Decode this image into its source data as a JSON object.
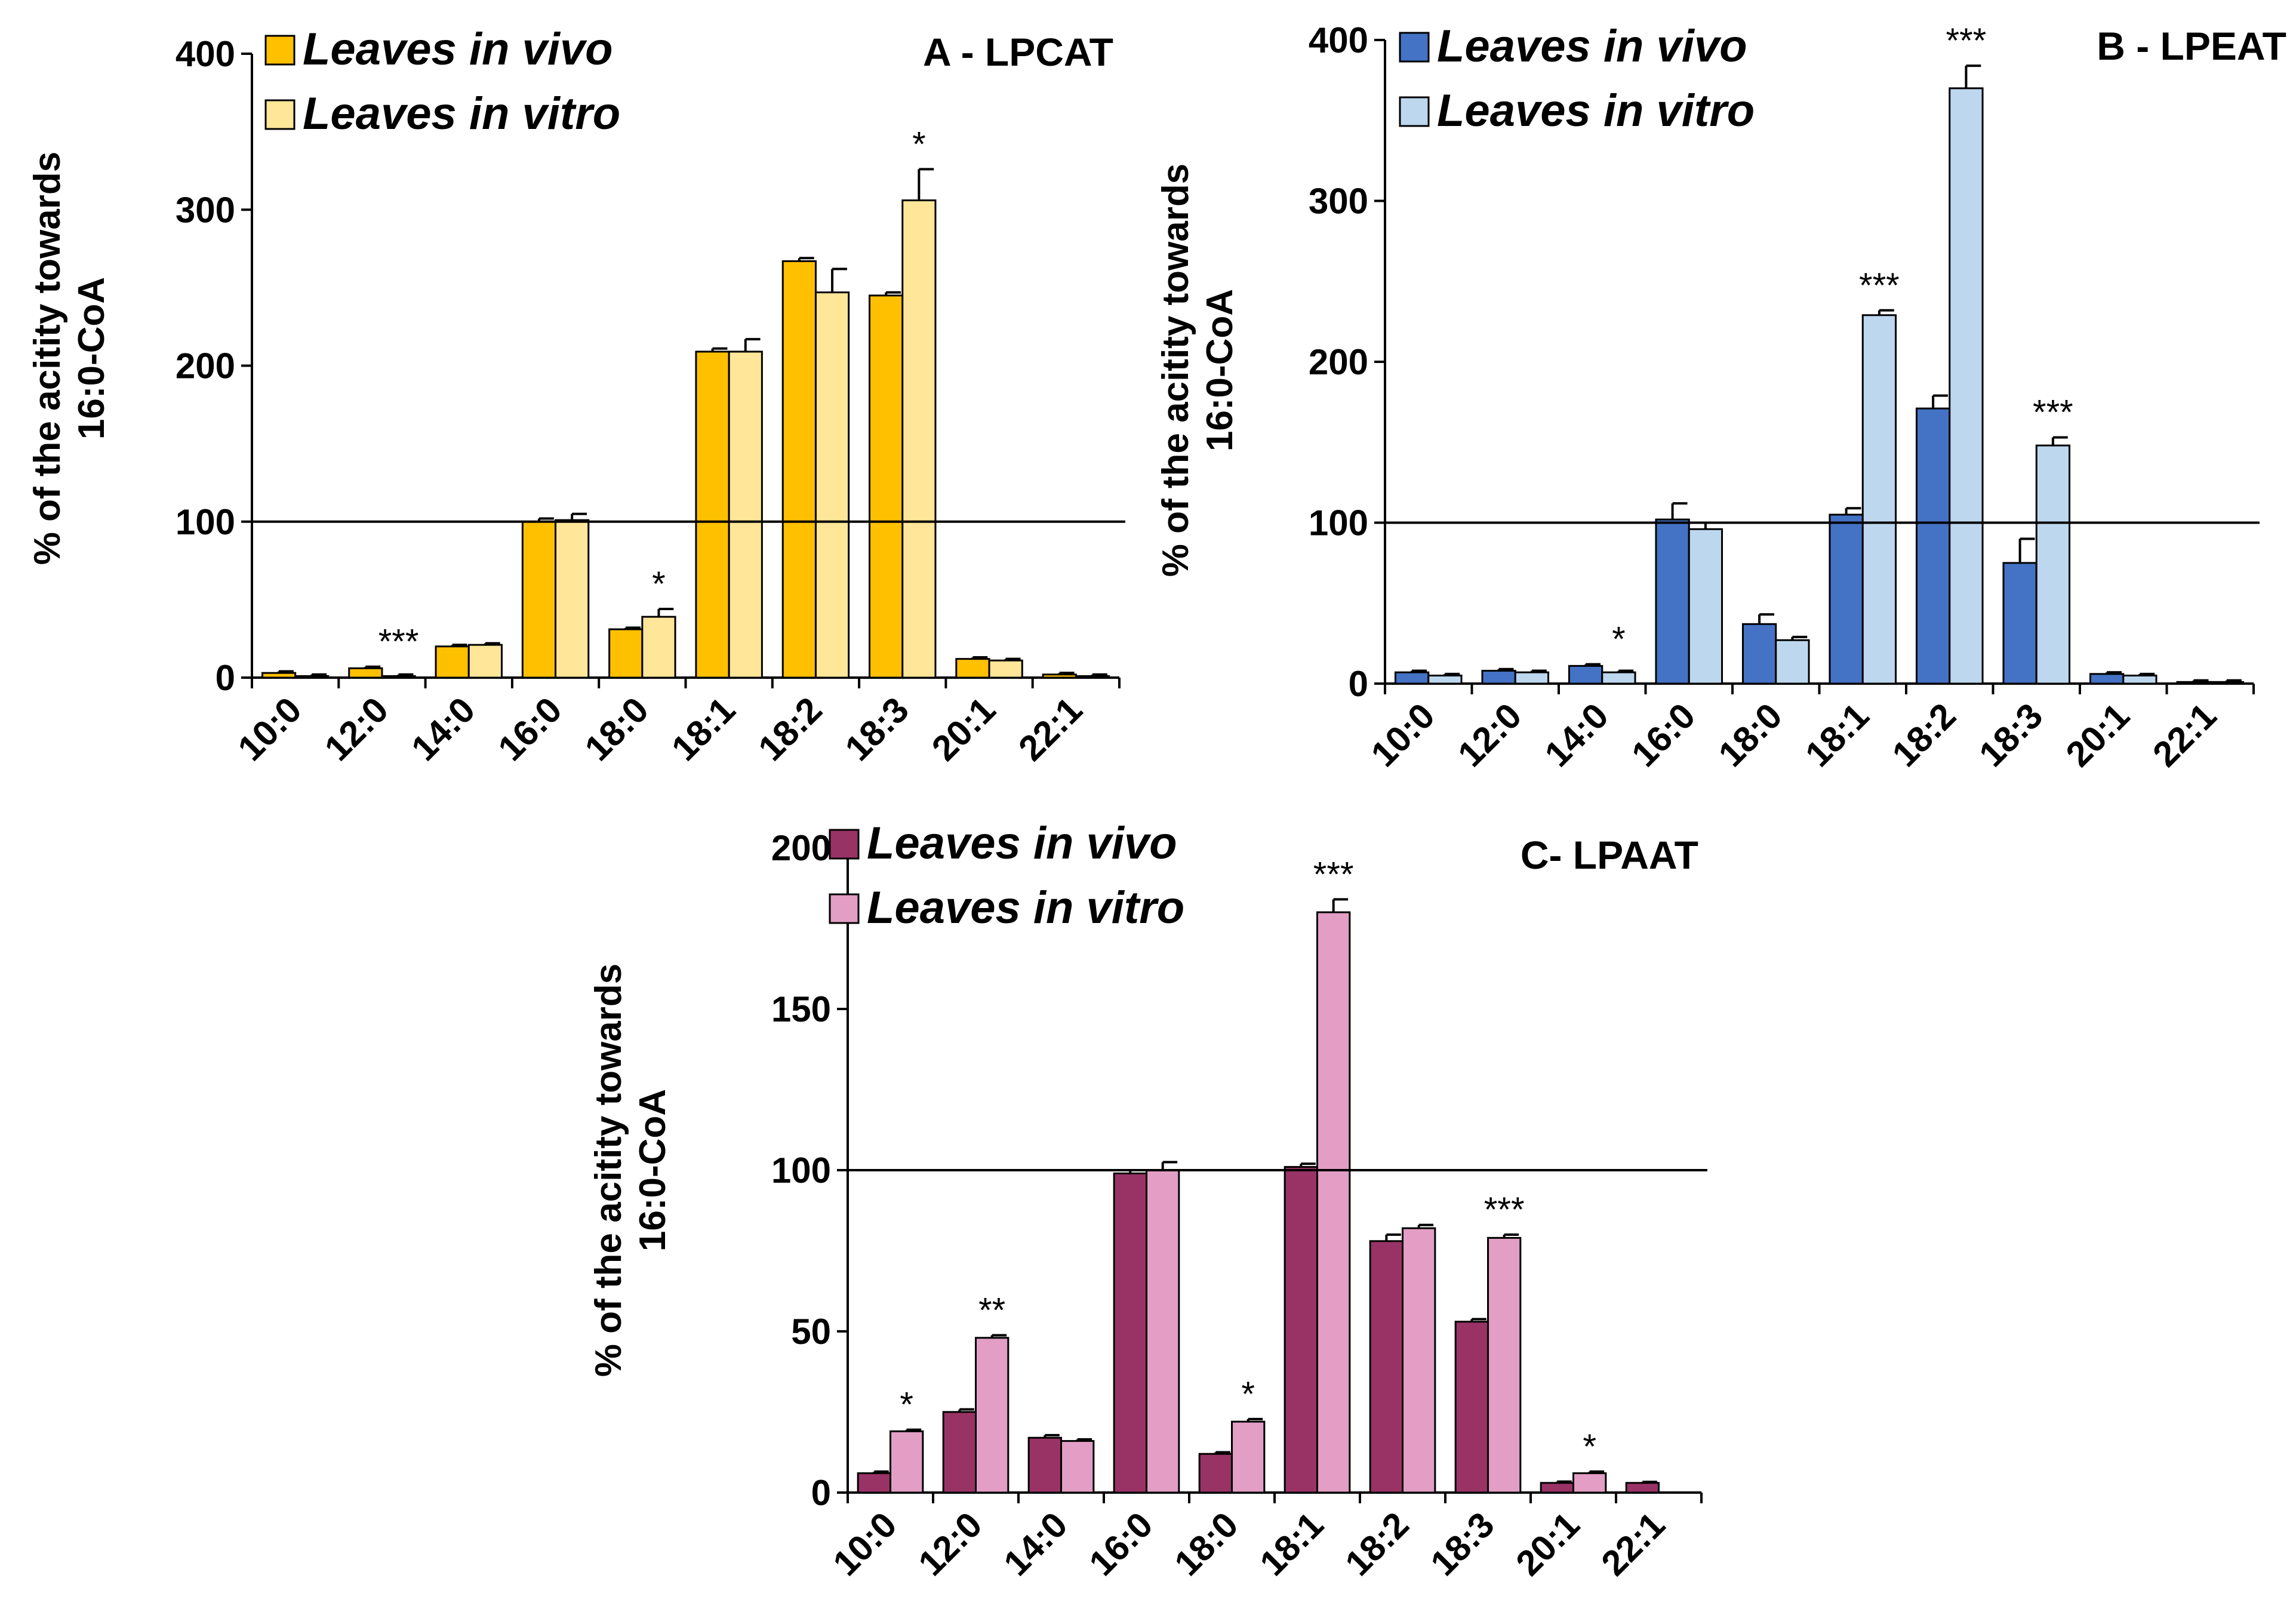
{
  "chart_data": [
    {
      "type": "bar",
      "title": "A - LPCAT",
      "ylabel": "% of the acitity towards 16:0-CoA",
      "ylim": [
        0,
        400
      ],
      "yticks": [
        0,
        100,
        200,
        300,
        400
      ],
      "reference_line": 100,
      "categories": [
        "10:0",
        "12:0",
        "14:0",
        "16:0",
        "18:0",
        "18:1",
        "18:2",
        "18:3",
        "20:1",
        "22:1"
      ],
      "series": [
        {
          "name": "Leaves in vivo",
          "color": "#FFC000",
          "values": [
            3,
            6,
            20,
            100,
            31,
            209,
            267,
            245,
            12,
            2
          ],
          "errors": [
            1,
            1,
            1,
            2,
            1,
            2,
            2,
            2,
            1,
            1
          ]
        },
        {
          "name": "Leaves in vitro",
          "color": "#FFE699",
          "values": [
            1,
            1,
            21,
            101,
            39,
            209,
            247,
            306,
            11,
            1
          ],
          "errors": [
            1,
            1,
            1,
            4,
            5,
            8,
            15,
            20,
            1,
            1
          ]
        }
      ],
      "significance": [
        "",
        "***",
        "",
        "",
        "*",
        "",
        "",
        "*",
        "",
        ""
      ]
    },
    {
      "type": "bar",
      "title": "B - LPEAT",
      "ylabel": "% of the acitity towards 16:0-CoA",
      "ylim": [
        0,
        400
      ],
      "yticks": [
        0,
        100,
        200,
        300,
        400
      ],
      "reference_line": 100,
      "categories": [
        "10:0",
        "12:0",
        "14:0",
        "16:0",
        "18:0",
        "18:1",
        "18:2",
        "18:3",
        "20:1",
        "22:1"
      ],
      "series": [
        {
          "name": "Leaves in vivo",
          "color": "#4472C4",
          "values": [
            7,
            8,
            11,
            102,
            37,
            105,
            171,
            75,
            6,
            1
          ],
          "errors": [
            1,
            1,
            1,
            10,
            6,
            4,
            8,
            15,
            1,
            1
          ]
        },
        {
          "name": "Leaves in vitro",
          "color": "#BDD7EE",
          "values": [
            5,
            7,
            7,
            96,
            27,
            229,
            370,
            148,
            5,
            1
          ],
          "errors": [
            1,
            1,
            1,
            4,
            2,
            3,
            14,
            5,
            1,
            1
          ]
        }
      ],
      "significance": [
        "",
        "",
        "*",
        "",
        "",
        "***",
        "***",
        "***",
        "",
        ""
      ]
    },
    {
      "type": "bar",
      "title": "C- LPAAT",
      "ylabel": "% of the acitity towards 16:0-CoA",
      "ylim": [
        0,
        200
      ],
      "yticks": [
        0,
        50,
        100,
        150,
        200
      ],
      "reference_line": 100,
      "categories": [
        "10:0",
        "12:0",
        "14:0",
        "16:0",
        "18:0",
        "18:1",
        "18:2",
        "18:3",
        "20:1",
        "22:1"
      ],
      "series": [
        {
          "name": "Leaves in vivo",
          "color": "#993366",
          "values": [
            6,
            25,
            17,
            99,
            12,
            101,
            78,
            53,
            3,
            3
          ],
          "errors": [
            0.5,
            0.8,
            0.8,
            1,
            0.5,
            1,
            2,
            0.8,
            0.4,
            0.3
          ]
        },
        {
          "name": "Leaves in vitro",
          "color": "#E29EC5",
          "values": [
            19,
            48,
            16,
            100,
            22,
            180,
            82,
            79,
            6,
            0
          ],
          "errors": [
            0.5,
            0.8,
            0.5,
            2.5,
            0.8,
            4,
            1,
            1,
            0.5,
            0
          ]
        }
      ],
      "significance": [
        "*",
        "**",
        "",
        "",
        "*",
        "***",
        "",
        "***",
        "*",
        ""
      ]
    }
  ]
}
